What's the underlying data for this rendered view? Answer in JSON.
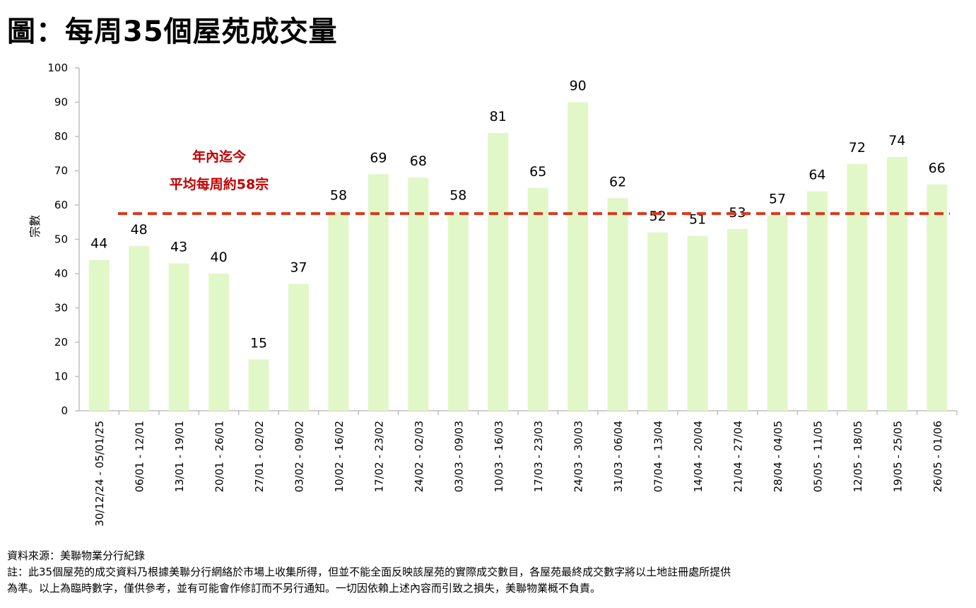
{
  "title": "圖：每周35個屋苑成交量",
  "average_note": {
    "line1": "年內迄今",
    "line2": "平均每周約58宗"
  },
  "footer": {
    "source": "資料來源：美聯物業分行紀錄",
    "note_line1": "註：此35個屋苑的成交資料乃根據美聯分行網絡於市場上收集所得，但並不能全面反映該屋苑的實際成交數目，各屋苑最終成交數字將以土地註冊處所提供",
    "note_line2": "為準。以上為臨時數字，僅供參考，並有可能會作修訂而不另行通知。一切因依賴上述內容而引致之損失，美聯物業概不負責。"
  },
  "colors": {
    "bar": "#e2f7c8",
    "average_line": "#d9381e",
    "average_text": "#c00000",
    "axis": "#bfbfbf"
  },
  "chart_data": {
    "type": "bar",
    "title": "圖：每周35個屋苑成交量",
    "xlabel": "",
    "ylabel": "宗數",
    "ylim": [
      0,
      100
    ],
    "yticks": [
      0,
      10,
      20,
      30,
      40,
      50,
      60,
      70,
      80,
      90,
      100
    ],
    "grid": false,
    "categories": [
      "30/12/24 - 05/01/25",
      "06/01 - 12/01",
      "13/01 - 19/01",
      "20/01 - 26/01",
      "27/01 - 02/02",
      "03/02 - 09/02",
      "10/02 - 16/02",
      "17/02 - 23/02",
      "24/02 - 02/03",
      "03/03 - 09/03",
      "10/03 - 16/03",
      "17/03 - 23/03",
      "24/03 - 30/03",
      "31/03 - 06/04",
      "07/04 - 13/04",
      "14/04 - 20/04",
      "21/04 - 27/04",
      "28/04 - 04/05",
      "05/05 - 11/05",
      "12/05 - 18/05",
      "19/05 - 25/05",
      "26/05 - 01/06"
    ],
    "values": [
      44,
      48,
      43,
      40,
      15,
      37,
      58,
      69,
      68,
      58,
      81,
      65,
      90,
      62,
      52,
      51,
      53,
      57,
      64,
      72,
      74,
      66
    ],
    "reference_line": {
      "value": 57.5,
      "style": "dashed"
    }
  }
}
